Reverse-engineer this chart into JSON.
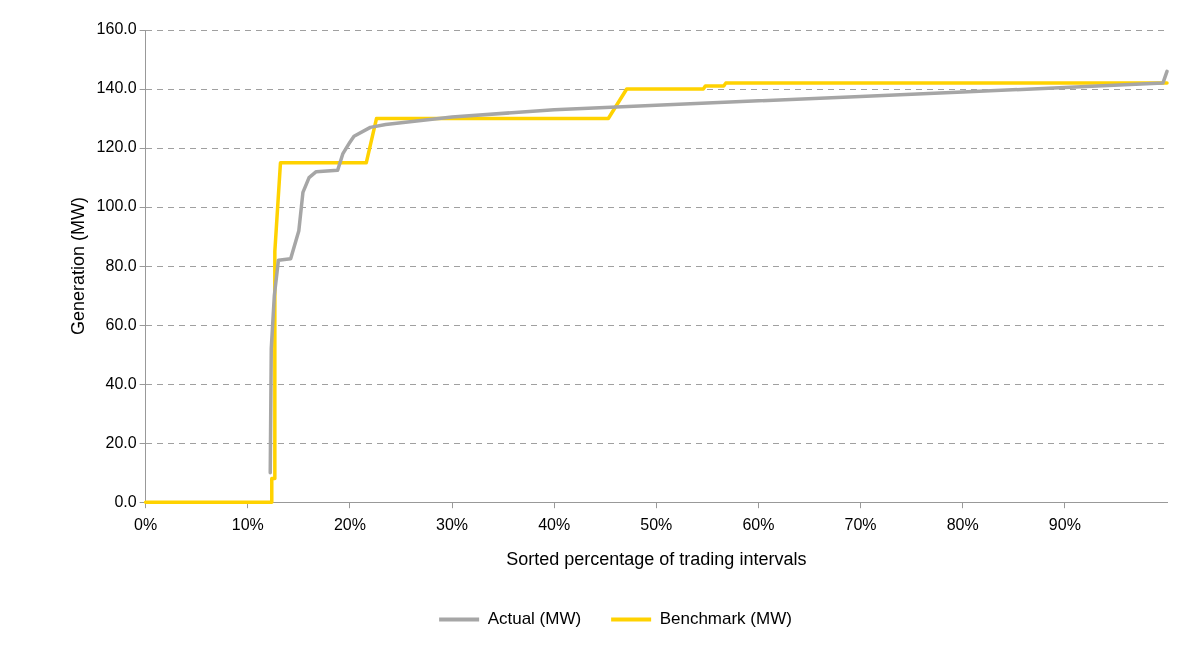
{
  "chart_data": {
    "type": "line",
    "xlabel": "Sorted percentage of trading intervals",
    "ylabel": "Generation (MW)",
    "xlim": [
      0,
      100
    ],
    "xticks": [
      {
        "value": 0,
        "label": "0%"
      },
      {
        "value": 10,
        "label": "10%"
      },
      {
        "value": 20,
        "label": "20%"
      },
      {
        "value": 30,
        "label": "30%"
      },
      {
        "value": 40,
        "label": "40%"
      },
      {
        "value": 50,
        "label": "50%"
      },
      {
        "value": 60,
        "label": "60%"
      },
      {
        "value": 70,
        "label": "70%"
      },
      {
        "value": 80,
        "label": "80%"
      },
      {
        "value": 90,
        "label": "90%"
      }
    ],
    "ylim": [
      0,
      160
    ],
    "yticks": [
      {
        "value": 0,
        "label": "0.0"
      },
      {
        "value": 20,
        "label": "20.0"
      },
      {
        "value": 40,
        "label": "40.0"
      },
      {
        "value": 60,
        "label": "60.0"
      },
      {
        "value": 80,
        "label": "80.0"
      },
      {
        "value": 100,
        "label": "100.0"
      },
      {
        "value": 120,
        "label": "120.0"
      },
      {
        "value": 140,
        "label": "140.0"
      },
      {
        "value": 160,
        "label": "160.0"
      }
    ],
    "grid": "y",
    "legend": "bottom",
    "marker": "none",
    "line_style": "solid",
    "series": [
      {
        "name": "Actual (MW)",
        "color": "#a6a6a6",
        "x": [
          12.2,
          12.3,
          12.6,
          13.0,
          14.2,
          15.0,
          15.4,
          16.0,
          16.7,
          18.8,
          19.3,
          20.0,
          20.4,
          22.0,
          23.5,
          30,
          40,
          50,
          60,
          70,
          80,
          90,
          99.6,
          100
        ],
        "values": [
          10,
          52,
          70,
          82,
          82.5,
          92,
          105,
          110,
          112,
          112.5,
          118,
          122,
          124,
          127,
          128,
          130.5,
          133,
          134.5,
          136,
          137.5,
          139,
          140.5,
          142,
          146
        ]
      },
      {
        "name": "Benchmark (MW)",
        "color": "#ffd200",
        "x": [
          0,
          12.3,
          12.35,
          12.6,
          12.65,
          13.2,
          21.6,
          22.6,
          45.3,
          47.1,
          54.6,
          54.8,
          56.6,
          56.8,
          100
        ],
        "values": [
          0,
          0,
          8,
          8,
          85,
          115,
          115,
          130,
          130,
          140,
          140,
          141,
          141,
          142,
          142
        ]
      }
    ]
  }
}
